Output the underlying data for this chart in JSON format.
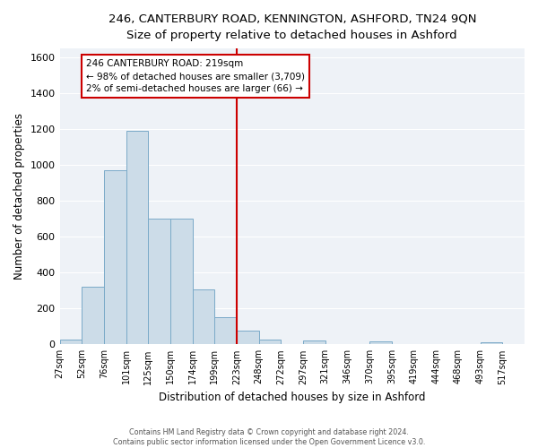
{
  "title": "246, CANTERBURY ROAD, KENNINGTON, ASHFORD, TN24 9QN",
  "subtitle": "Size of property relative to detached houses in Ashford",
  "xlabel": "Distribution of detached houses by size in Ashford",
  "ylabel": "Number of detached properties",
  "bar_values": [
    25,
    320,
    970,
    1190,
    700,
    700,
    305,
    150,
    75,
    25,
    0,
    20,
    0,
    0,
    15,
    0,
    0,
    0,
    0,
    10,
    0
  ],
  "bar_labels": [
    "27sqm",
    "52sqm",
    "76sqm",
    "101sqm",
    "125sqm",
    "150sqm",
    "174sqm",
    "199sqm",
    "223sqm",
    "248sqm",
    "272sqm",
    "297sqm",
    "321sqm",
    "346sqm",
    "370sqm",
    "395sqm",
    "419sqm",
    "444sqm",
    "468sqm",
    "493sqm",
    "517sqm"
  ],
  "bar_color": "#ccdce8",
  "bar_edgecolor": "#7aaac8",
  "annotation_line1": "246 CANTERBURY ROAD: 219sqm",
  "annotation_line2": "← 98% of detached houses are smaller (3,709)",
  "annotation_line3": "2% of semi-detached houses are larger (66) →",
  "line_color": "#cc0000",
  "ylim": [
    0,
    1650
  ],
  "yticks": [
    0,
    200,
    400,
    600,
    800,
    1000,
    1200,
    1400,
    1600
  ],
  "background_color": "#eef2f7",
  "grid_color": "#ffffff",
  "footer1": "Contains HM Land Registry data © Crown copyright and database right 2024.",
  "footer2": "Contains public sector information licensed under the Open Government Licence v3.0."
}
